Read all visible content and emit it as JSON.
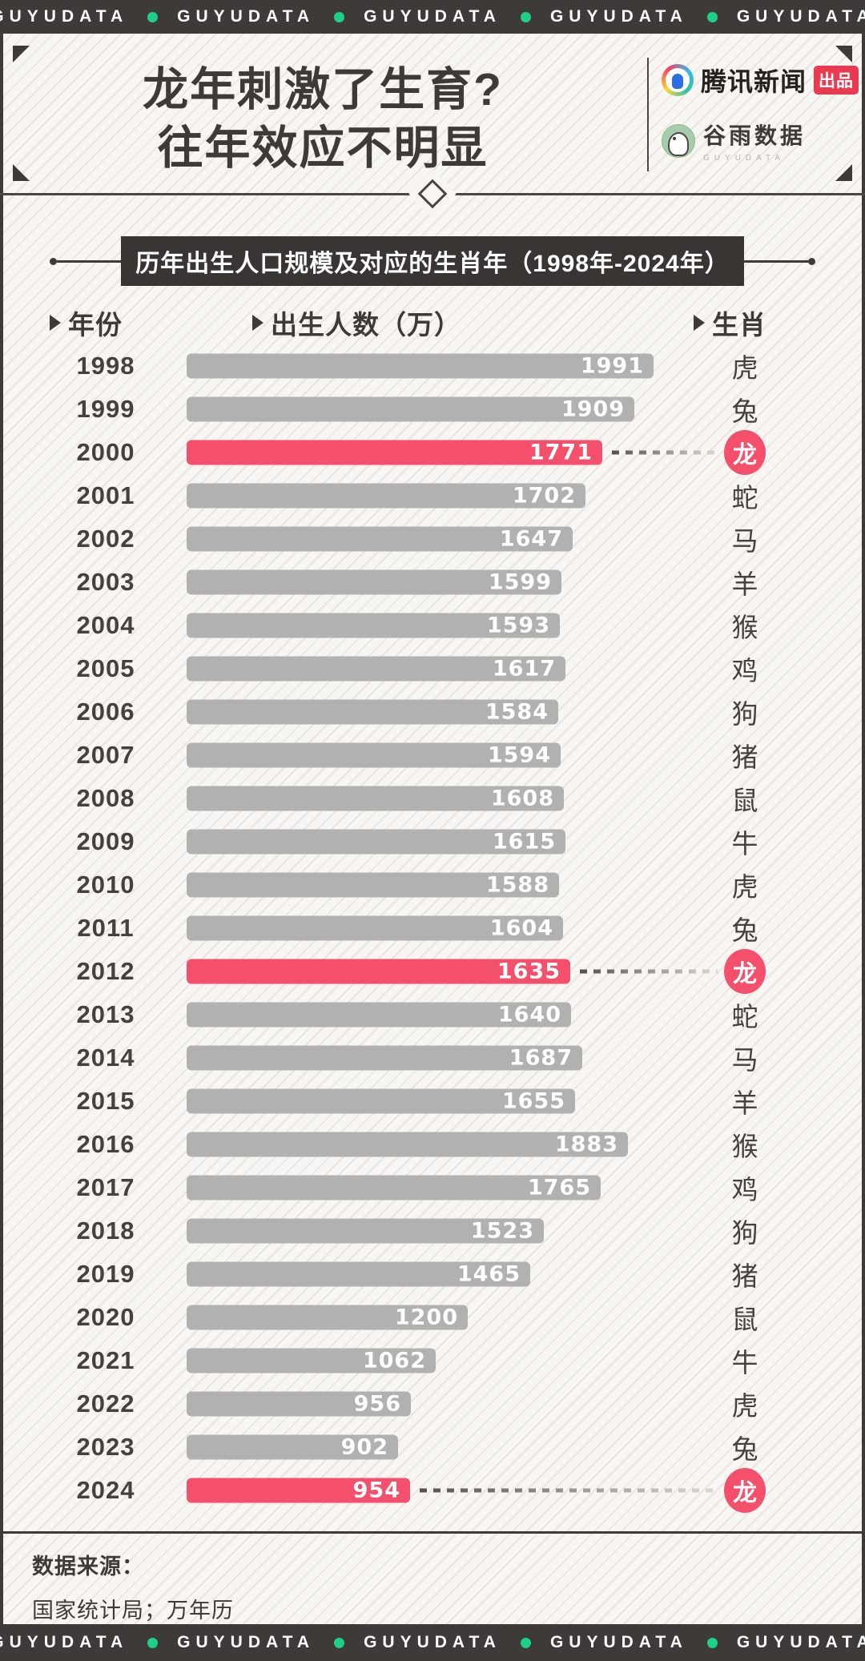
{
  "colors": {
    "dark": "#3e3a37",
    "background": "#f8f6f3",
    "stripe": "#e9e6e1",
    "bar_gray": "#b3b1af",
    "accent_pink": "#f4506c",
    "dot_green": "#1ed189",
    "badge_red": "#e93a52"
  },
  "ribbon": {
    "brand": "GUYUDATA",
    "repeat": 5
  },
  "header": {
    "title_line1": "龙年刺激了生育?",
    "title_line2": "往年效应不明显",
    "publisher": {
      "name": "腾讯新闻",
      "badge": "出品"
    },
    "guyu": {
      "name": "谷雨数据",
      "sub": "GUYUDATA"
    }
  },
  "chart_data": {
    "type": "bar",
    "orientation": "horizontal",
    "title": "历年出生人口规模及对应的生肖年（1998年-2024年）",
    "columns": [
      "年份",
      "出生人数（万）",
      "生肖"
    ],
    "xlim": [
      0,
      2000
    ],
    "highlight_rule": "dragon zodiac years highlighted in pink with circled 龙",
    "rows": [
      {
        "year": "1998",
        "value": 1991,
        "zodiac": "虎",
        "highlight": false
      },
      {
        "year": "1999",
        "value": 1909,
        "zodiac": "兔",
        "highlight": false
      },
      {
        "year": "2000",
        "value": 1771,
        "zodiac": "龙",
        "highlight": true
      },
      {
        "year": "2001",
        "value": 1702,
        "zodiac": "蛇",
        "highlight": false
      },
      {
        "year": "2002",
        "value": 1647,
        "zodiac": "马",
        "highlight": false
      },
      {
        "year": "2003",
        "value": 1599,
        "zodiac": "羊",
        "highlight": false
      },
      {
        "year": "2004",
        "value": 1593,
        "zodiac": "猴",
        "highlight": false
      },
      {
        "year": "2005",
        "value": 1617,
        "zodiac": "鸡",
        "highlight": false
      },
      {
        "year": "2006",
        "value": 1584,
        "zodiac": "狗",
        "highlight": false
      },
      {
        "year": "2007",
        "value": 1594,
        "zodiac": "猪",
        "highlight": false
      },
      {
        "year": "2008",
        "value": 1608,
        "zodiac": "鼠",
        "highlight": false
      },
      {
        "year": "2009",
        "value": 1615,
        "zodiac": "牛",
        "highlight": false
      },
      {
        "year": "2010",
        "value": 1588,
        "zodiac": "虎",
        "highlight": false
      },
      {
        "year": "2011",
        "value": 1604,
        "zodiac": "兔",
        "highlight": false
      },
      {
        "year": "2012",
        "value": 1635,
        "zodiac": "龙",
        "highlight": true
      },
      {
        "year": "2013",
        "value": 1640,
        "zodiac": "蛇",
        "highlight": false
      },
      {
        "year": "2014",
        "value": 1687,
        "zodiac": "马",
        "highlight": false
      },
      {
        "year": "2015",
        "value": 1655,
        "zodiac": "羊",
        "highlight": false
      },
      {
        "year": "2016",
        "value": 1883,
        "zodiac": "猴",
        "highlight": false
      },
      {
        "year": "2017",
        "value": 1765,
        "zodiac": "鸡",
        "highlight": false
      },
      {
        "year": "2018",
        "value": 1523,
        "zodiac": "狗",
        "highlight": false
      },
      {
        "year": "2019",
        "value": 1465,
        "zodiac": "猪",
        "highlight": false
      },
      {
        "year": "2020",
        "value": 1200,
        "zodiac": "鼠",
        "highlight": false
      },
      {
        "year": "2021",
        "value": 1062,
        "zodiac": "牛",
        "highlight": false
      },
      {
        "year": "2022",
        "value": 956,
        "zodiac": "虎",
        "highlight": false
      },
      {
        "year": "2023",
        "value": 902,
        "zodiac": "兔",
        "highlight": false
      },
      {
        "year": "2024",
        "value": 954,
        "zodiac": "龙",
        "highlight": true
      }
    ]
  },
  "footer": {
    "source_label": "数据来源：",
    "source_text": "国家统计局；万年历"
  }
}
